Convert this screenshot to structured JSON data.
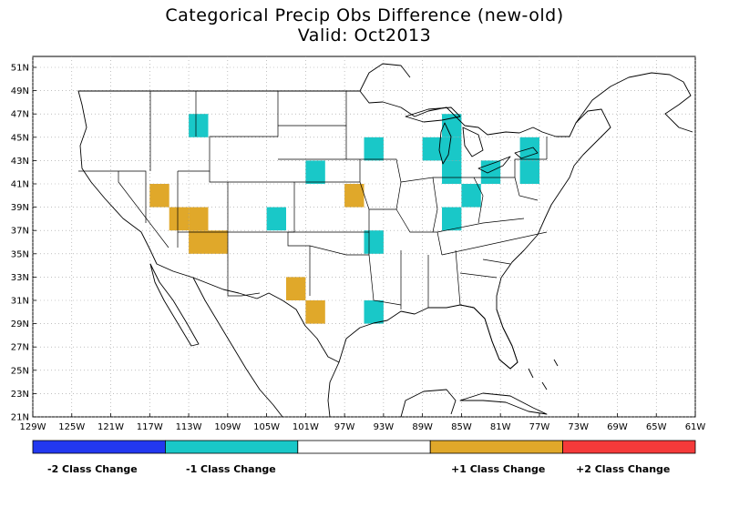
{
  "title": {
    "line1": "Categorical Precip Obs Difference (new-old)",
    "line2": "Valid: Oct2013"
  },
  "axes": {
    "lat_labels": [
      "51N",
      "49N",
      "47N",
      "45N",
      "43N",
      "41N",
      "39N",
      "37N",
      "35N",
      "33N",
      "31N",
      "29N",
      "27N",
      "25N",
      "23N",
      "21N"
    ],
    "lat_values": [
      51,
      49,
      47,
      45,
      43,
      41,
      39,
      37,
      35,
      33,
      31,
      29,
      27,
      25,
      23,
      21
    ],
    "lon_labels": [
      "129W",
      "125W",
      "121W",
      "117W",
      "113W",
      "109W",
      "105W",
      "101W",
      "97W",
      "93W",
      "89W",
      "85W",
      "81W",
      "77W",
      "73W",
      "69W",
      "65W",
      "61W"
    ],
    "lon_values": [
      -129,
      -125,
      -121,
      -117,
      -113,
      -109,
      -105,
      -101,
      -97,
      -93,
      -89,
      -85,
      -81,
      -77,
      -73,
      -69,
      -65,
      -61
    ],
    "lon_range": [
      -129,
      -61
    ],
    "lat_range": [
      21,
      52
    ],
    "grid": true
  },
  "colors": {
    "minus2": "#2238f0",
    "minus1": "#19c8c8",
    "zero": "#ffffff",
    "plus1": "#e0a82a",
    "plus2": "#f53a3a"
  },
  "legend": {
    "minus2_label": "-2 Class Change",
    "minus1_label": "-1 Class Change",
    "plus1_label": "+1 Class Change",
    "plus2_label": "+2 Class Change"
  },
  "cells": [
    {
      "lon": -112,
      "lat": 46,
      "value": -1
    },
    {
      "lon": -94,
      "lat": 44,
      "value": -1
    },
    {
      "lon": -88,
      "lat": 44,
      "value": -1
    },
    {
      "lon": -100,
      "lat": 42,
      "value": -1
    },
    {
      "lon": -104,
      "lat": 38,
      "value": -1
    },
    {
      "lon": -94,
      "lat": 36,
      "value": -1
    },
    {
      "lon": -94,
      "lat": 30,
      "value": -1
    },
    {
      "lon": -86,
      "lat": 46,
      "value": -1
    },
    {
      "lon": -86,
      "lat": 44,
      "value": -1
    },
    {
      "lon": -86,
      "lat": 42,
      "value": -1
    },
    {
      "lon": -84,
      "lat": 40,
      "value": -1
    },
    {
      "lon": -86,
      "lat": 38,
      "value": -1
    },
    {
      "lon": -82,
      "lat": 42,
      "value": -1
    },
    {
      "lon": -78,
      "lat": 44,
      "value": -1
    },
    {
      "lon": -78,
      "lat": 42,
      "value": -1
    },
    {
      "lon": -116,
      "lat": 40,
      "value": 1
    },
    {
      "lon": -114,
      "lat": 38,
      "value": 1
    },
    {
      "lon": -112,
      "lat": 38,
      "value": 1
    },
    {
      "lon": -112,
      "lat": 36,
      "value": 1
    },
    {
      "lon": -110,
      "lat": 36,
      "value": 1
    },
    {
      "lon": -96,
      "lat": 40,
      "value": 1
    },
    {
      "lon": -102,
      "lat": 32,
      "value": 1
    },
    {
      "lon": -100,
      "lat": 30,
      "value": 1
    }
  ]
}
